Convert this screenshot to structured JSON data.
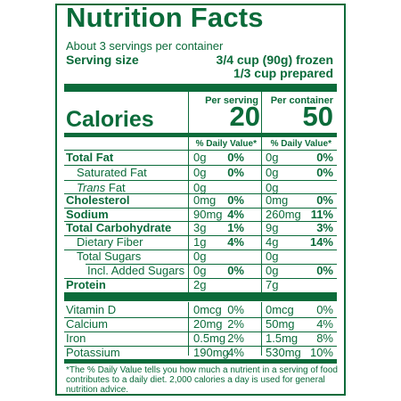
{
  "title": "Nutrition Facts",
  "servings_per_container": "About 3 servings per container",
  "serving_size": {
    "label": "Serving size",
    "frozen": "3/4 cup (90g) frozen",
    "prepared": "1/3 cup prepared"
  },
  "columns": {
    "per_serving": "Per serving",
    "per_container": "Per container",
    "dv_header": "% Daily Value*"
  },
  "calories": {
    "label": "Calories",
    "per_serving": "20",
    "per_container": "50"
  },
  "nutrients": [
    {
      "name": "Total Fat",
      "s_amt": "0g",
      "s_dv": "0%",
      "c_amt": "0g",
      "c_dv": "0%"
    },
    {
      "name": "Saturated Fat",
      "s_amt": "0g",
      "s_dv": "0%",
      "c_amt": "0g",
      "c_dv": "0%"
    },
    {
      "name_italic": "Trans",
      "name_rest": " Fat",
      "s_amt": "0g",
      "s_dv": "",
      "c_amt": "0g",
      "c_dv": ""
    },
    {
      "name": "Cholesterol",
      "s_amt": "0mg",
      "s_dv": "0%",
      "c_amt": "0mg",
      "c_dv": "0%"
    },
    {
      "name": "Sodium",
      "s_amt": "90mg",
      "s_dv": "4%",
      "c_amt": "260mg",
      "c_dv": "11%"
    },
    {
      "name": "Total Carbohydrate",
      "s_amt": "3g",
      "s_dv": "1%",
      "c_amt": "9g",
      "c_dv": "3%"
    },
    {
      "name": "Dietary Fiber",
      "s_amt": "1g",
      "s_dv": "4%",
      "c_amt": "4g",
      "c_dv": "14%"
    },
    {
      "name": "Total Sugars",
      "s_amt": "0g",
      "s_dv": "",
      "c_amt": "0g",
      "c_dv": ""
    },
    {
      "name": "Incl. Added Sugars",
      "s_amt": "0g",
      "s_dv": "0%",
      "c_amt": "0g",
      "c_dv": "0%"
    },
    {
      "name": "Protein",
      "s_amt": "2g",
      "s_dv": "",
      "c_amt": "7g",
      "c_dv": ""
    }
  ],
  "vitamins": [
    {
      "name": "Vitamin D",
      "s_amt": "0mcg",
      "s_dv": "0%",
      "c_amt": "0mcg",
      "c_dv": "0%"
    },
    {
      "name": "Calcium",
      "s_amt": "20mg",
      "s_dv": "2%",
      "c_amt": "50mg",
      "c_dv": "4%"
    },
    {
      "name": "Iron",
      "s_amt": "0.5mg",
      "s_dv": "2%",
      "c_amt": "1.5mg",
      "c_dv": "8%"
    },
    {
      "name": "Potassium",
      "s_amt": "190mg",
      "s_dv": "4%",
      "c_amt": "530mg",
      "c_dv": "10%"
    }
  ],
  "footnote": "*The % Daily Value tells you how much a nutrient in a serving of food contributes to a daily diet. 2,000 calories a day is used for general nutrition advice.",
  "colors": {
    "label_green": "#0b6b3a",
    "background": "#ffffff"
  }
}
